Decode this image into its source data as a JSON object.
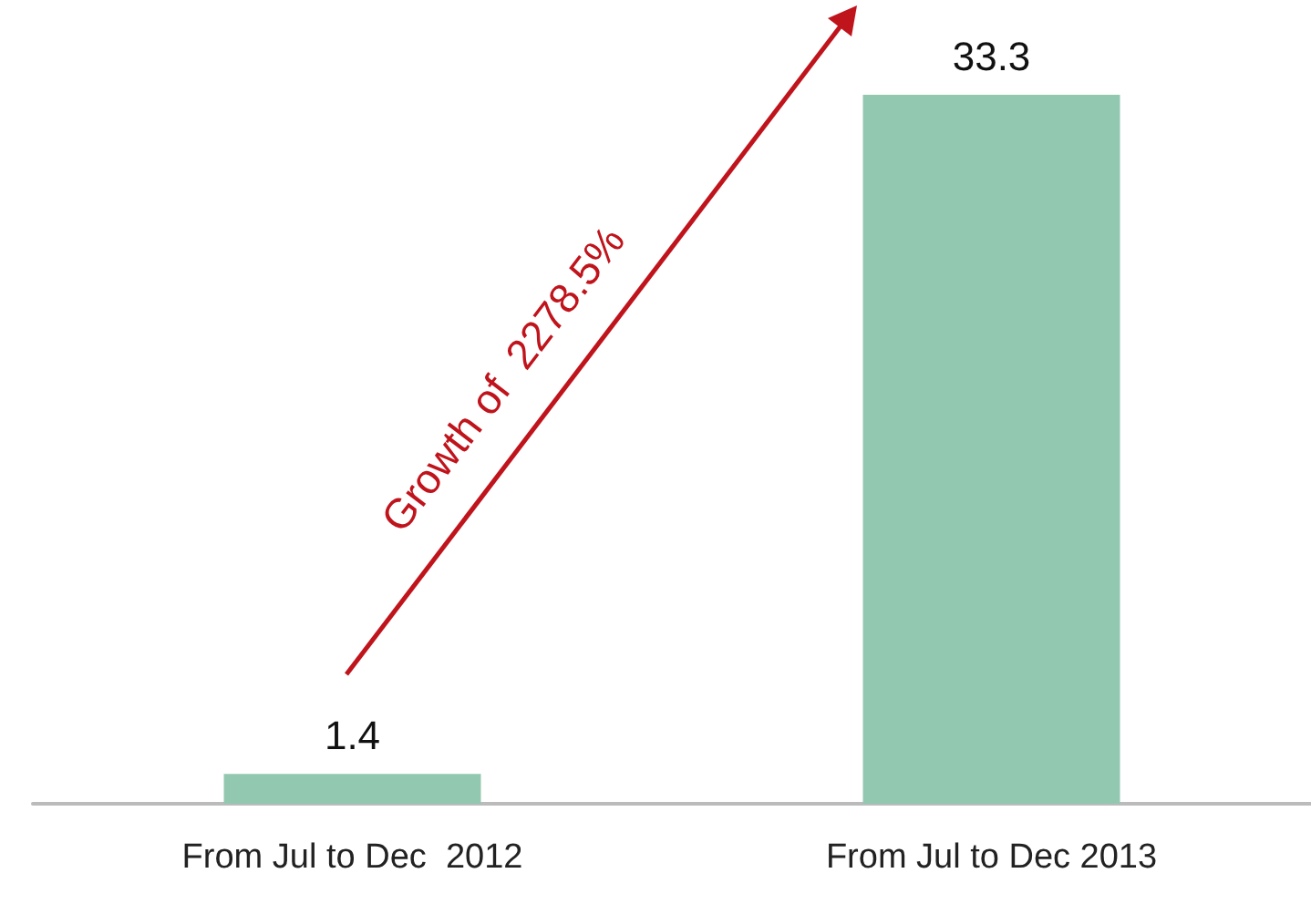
{
  "chart_data": {
    "type": "bar",
    "categories": [
      "From Jul to Dec  2012",
      "From Jul to Dec 2013"
    ],
    "values": [
      1.4,
      33.3
    ],
    "color": "#93c8b0",
    "data_labels": true,
    "annotations": [
      "Growth of  2278.5%"
    ]
  }
}
